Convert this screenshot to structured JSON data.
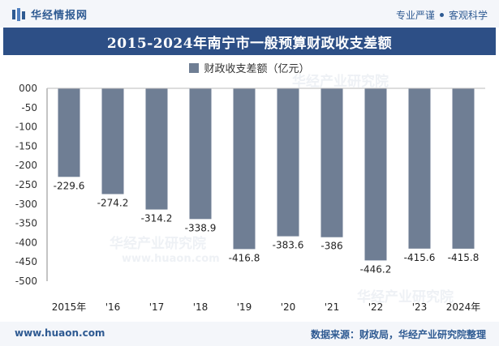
{
  "header": {
    "brand_name": "华经情报网",
    "slogan_1": "专业严谨",
    "slogan_2": "客观科学"
  },
  "watermark": {
    "text": "华经产业研究院",
    "url": "www.huaon.com"
  },
  "footer": {
    "website": "www.huaon.com",
    "source": "数据来源：财政局，华经产业研究院整理"
  },
  "colors": {
    "bar": "#6f7e94",
    "title_bg": "#2d4f86",
    "brand": "#2e5a92"
  },
  "chart_data": {
    "type": "bar",
    "title": "2015-2024年南宁市一般预算财政收支差额",
    "categories": [
      "2015年",
      "'16",
      "'17",
      "'18",
      "'19",
      "'20",
      "'21",
      "'22",
      "'23",
      "2024年"
    ],
    "series": [
      {
        "name": "财政收支差额（亿元）",
        "values": [
          -229.6,
          -274.2,
          -314.2,
          -338.9,
          -416.8,
          -383.6,
          -386,
          -446.2,
          -415.6,
          -415.8
        ],
        "labels": [
          "-229.6",
          "-274.2",
          "-314.2",
          "-338.9",
          "-416.8",
          "-383.6",
          "-386",
          "-446.2",
          "-415.6",
          "-415.8"
        ]
      }
    ],
    "ylim": [
      -500,
      0
    ],
    "yticks": [
      "000",
      "-50",
      "-100",
      "-150",
      "-200",
      "-250",
      "-300",
      "-350",
      "-400",
      "-450",
      "-500"
    ],
    "ytick_values": [
      0,
      -50,
      -100,
      -150,
      -200,
      -250,
      -300,
      -350,
      -400,
      -450,
      -500
    ],
    "legend_position": "top-center",
    "grid": false
  }
}
